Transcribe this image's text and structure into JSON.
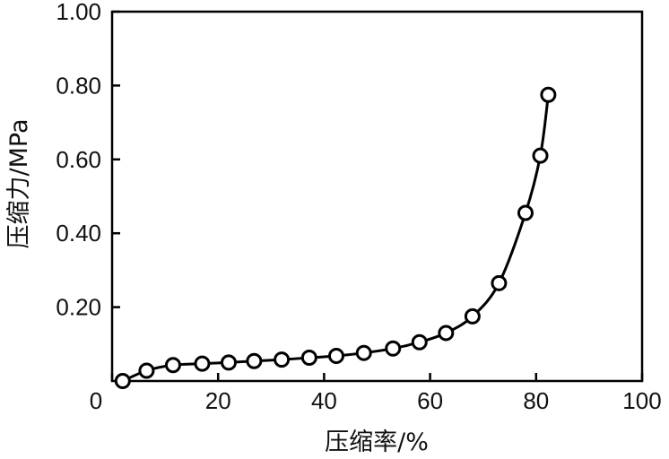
{
  "chart_data": {
    "type": "scatter",
    "title": "",
    "xlabel": "压缩率/%",
    "ylabel": "压缩力/MPa",
    "xlim": [
      0,
      100
    ],
    "ylim": [
      0,
      1.0
    ],
    "x_ticks": [
      "0",
      "20",
      "40",
      "60",
      "80",
      "100"
    ],
    "y_ticks": [
      "0.20",
      "0.40",
      "0.60",
      "0.80",
      "1.00"
    ],
    "grid": false,
    "legend": "none",
    "series": [
      {
        "marker": "open-circle",
        "line": "smooth",
        "color": "#000000",
        "x": [
          2,
          6.5,
          11.5,
          17,
          22,
          26.8,
          32,
          37.2,
          42.3,
          47.5,
          53,
          58,
          63,
          68,
          73,
          78,
          80.8,
          82.3
        ],
        "y": [
          0.0,
          0.028,
          0.043,
          0.047,
          0.05,
          0.054,
          0.058,
          0.063,
          0.068,
          0.076,
          0.088,
          0.105,
          0.13,
          0.175,
          0.265,
          0.455,
          0.61,
          0.775
        ]
      }
    ]
  }
}
